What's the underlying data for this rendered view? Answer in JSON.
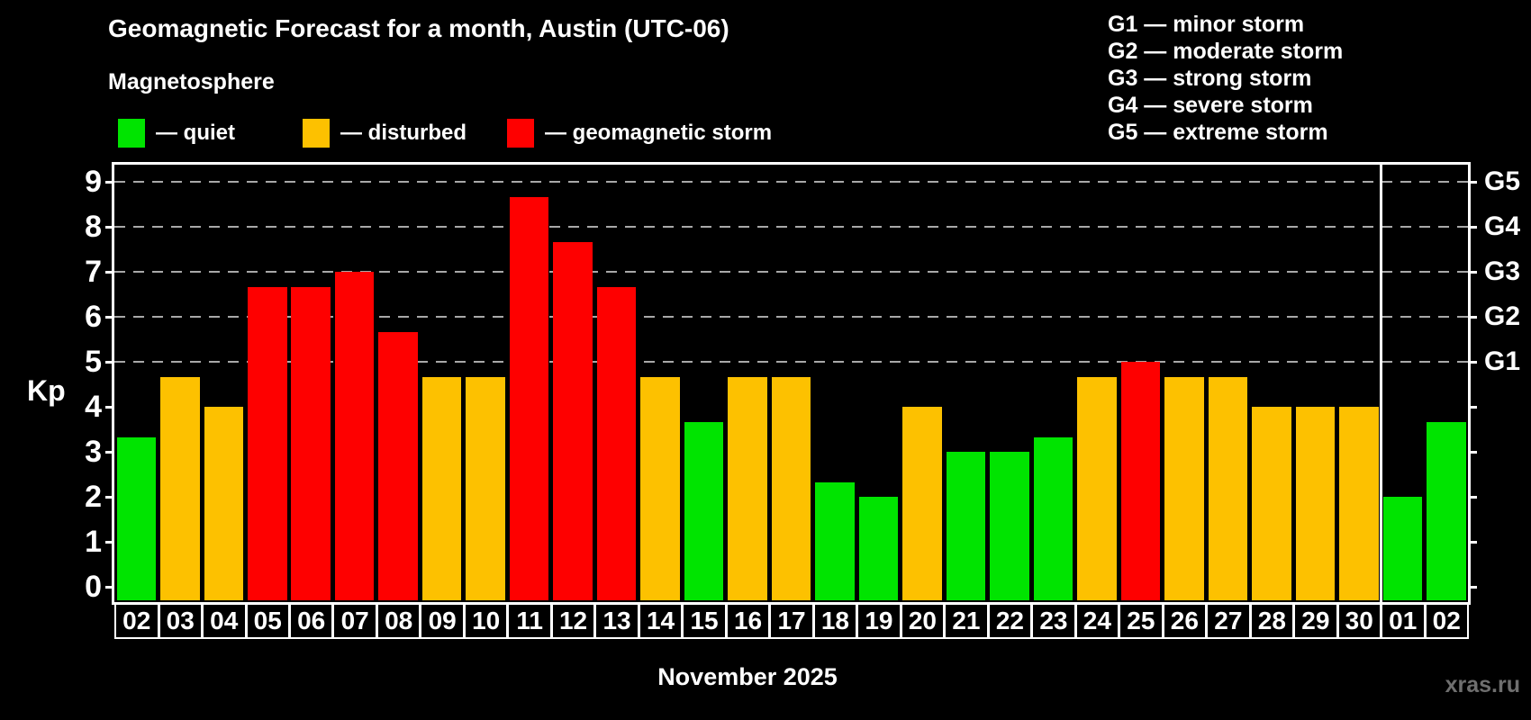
{
  "header": {
    "title": "Geomagnetic Forecast for a month, Austin (UTC-06)",
    "subtitle": "Magnetosphere"
  },
  "legend": {
    "items": [
      {
        "key": "quiet",
        "label": "— quiet",
        "color": "#00e400"
      },
      {
        "key": "disturbed",
        "label": "— disturbed",
        "color": "#fdc100"
      },
      {
        "key": "storm",
        "label": "— geomagnetic storm",
        "color": "#fe0000"
      }
    ]
  },
  "g_legend": {
    "items": [
      "G1 — minor storm",
      "G2 — moderate storm",
      "G3 — strong storm",
      "G4 — severe storm",
      "G5 — extreme storm"
    ]
  },
  "chart_data": {
    "type": "bar",
    "title": "Geomagnetic Forecast for a month, Austin (UTC-06)",
    "ylabel": "Kp",
    "xlabel": "November 2025",
    "ylim": [
      0,
      9
    ],
    "grid": "dashed horizontal at Kp 5-9",
    "yticks": [
      0,
      1,
      2,
      3,
      4,
      5,
      6,
      7,
      8,
      9
    ],
    "grid_levels": [
      5,
      6,
      7,
      8,
      9
    ],
    "right_axis": {
      "5": "G1",
      "6": "G2",
      "7": "G3",
      "8": "G4",
      "9": "G5"
    },
    "categories": [
      "02",
      "03",
      "04",
      "05",
      "06",
      "07",
      "08",
      "09",
      "10",
      "11",
      "12",
      "13",
      "14",
      "15",
      "16",
      "17",
      "18",
      "19",
      "20",
      "21",
      "22",
      "23",
      "24",
      "25",
      "26",
      "27",
      "28",
      "29",
      "30",
      "01",
      "02"
    ],
    "values": [
      3.33,
      4.67,
      4.0,
      6.67,
      6.67,
      7.0,
      5.67,
      4.67,
      4.67,
      8.67,
      7.67,
      6.67,
      4.67,
      3.67,
      4.67,
      4.67,
      2.33,
      2.0,
      4.0,
      3.0,
      3.0,
      3.33,
      4.67,
      5.0,
      4.67,
      4.67,
      4.0,
      4.0,
      4.0,
      2.0,
      3.67
    ],
    "statuses": [
      "quiet",
      "disturbed",
      "disturbed",
      "storm",
      "storm",
      "storm",
      "storm",
      "disturbed",
      "disturbed",
      "storm",
      "storm",
      "storm",
      "disturbed",
      "quiet",
      "disturbed",
      "disturbed",
      "quiet",
      "quiet",
      "disturbed",
      "quiet",
      "quiet",
      "quiet",
      "disturbed",
      "storm",
      "disturbed",
      "disturbed",
      "disturbed",
      "disturbed",
      "disturbed",
      "quiet",
      "quiet"
    ],
    "colors": {
      "quiet": "#00e400",
      "disturbed": "#fdc100",
      "storm": "#fe0000"
    },
    "month_separator_after_index": 28,
    "legend_position": "top"
  },
  "footer": {
    "caption": "November 2025",
    "watermark": "xras.ru"
  }
}
